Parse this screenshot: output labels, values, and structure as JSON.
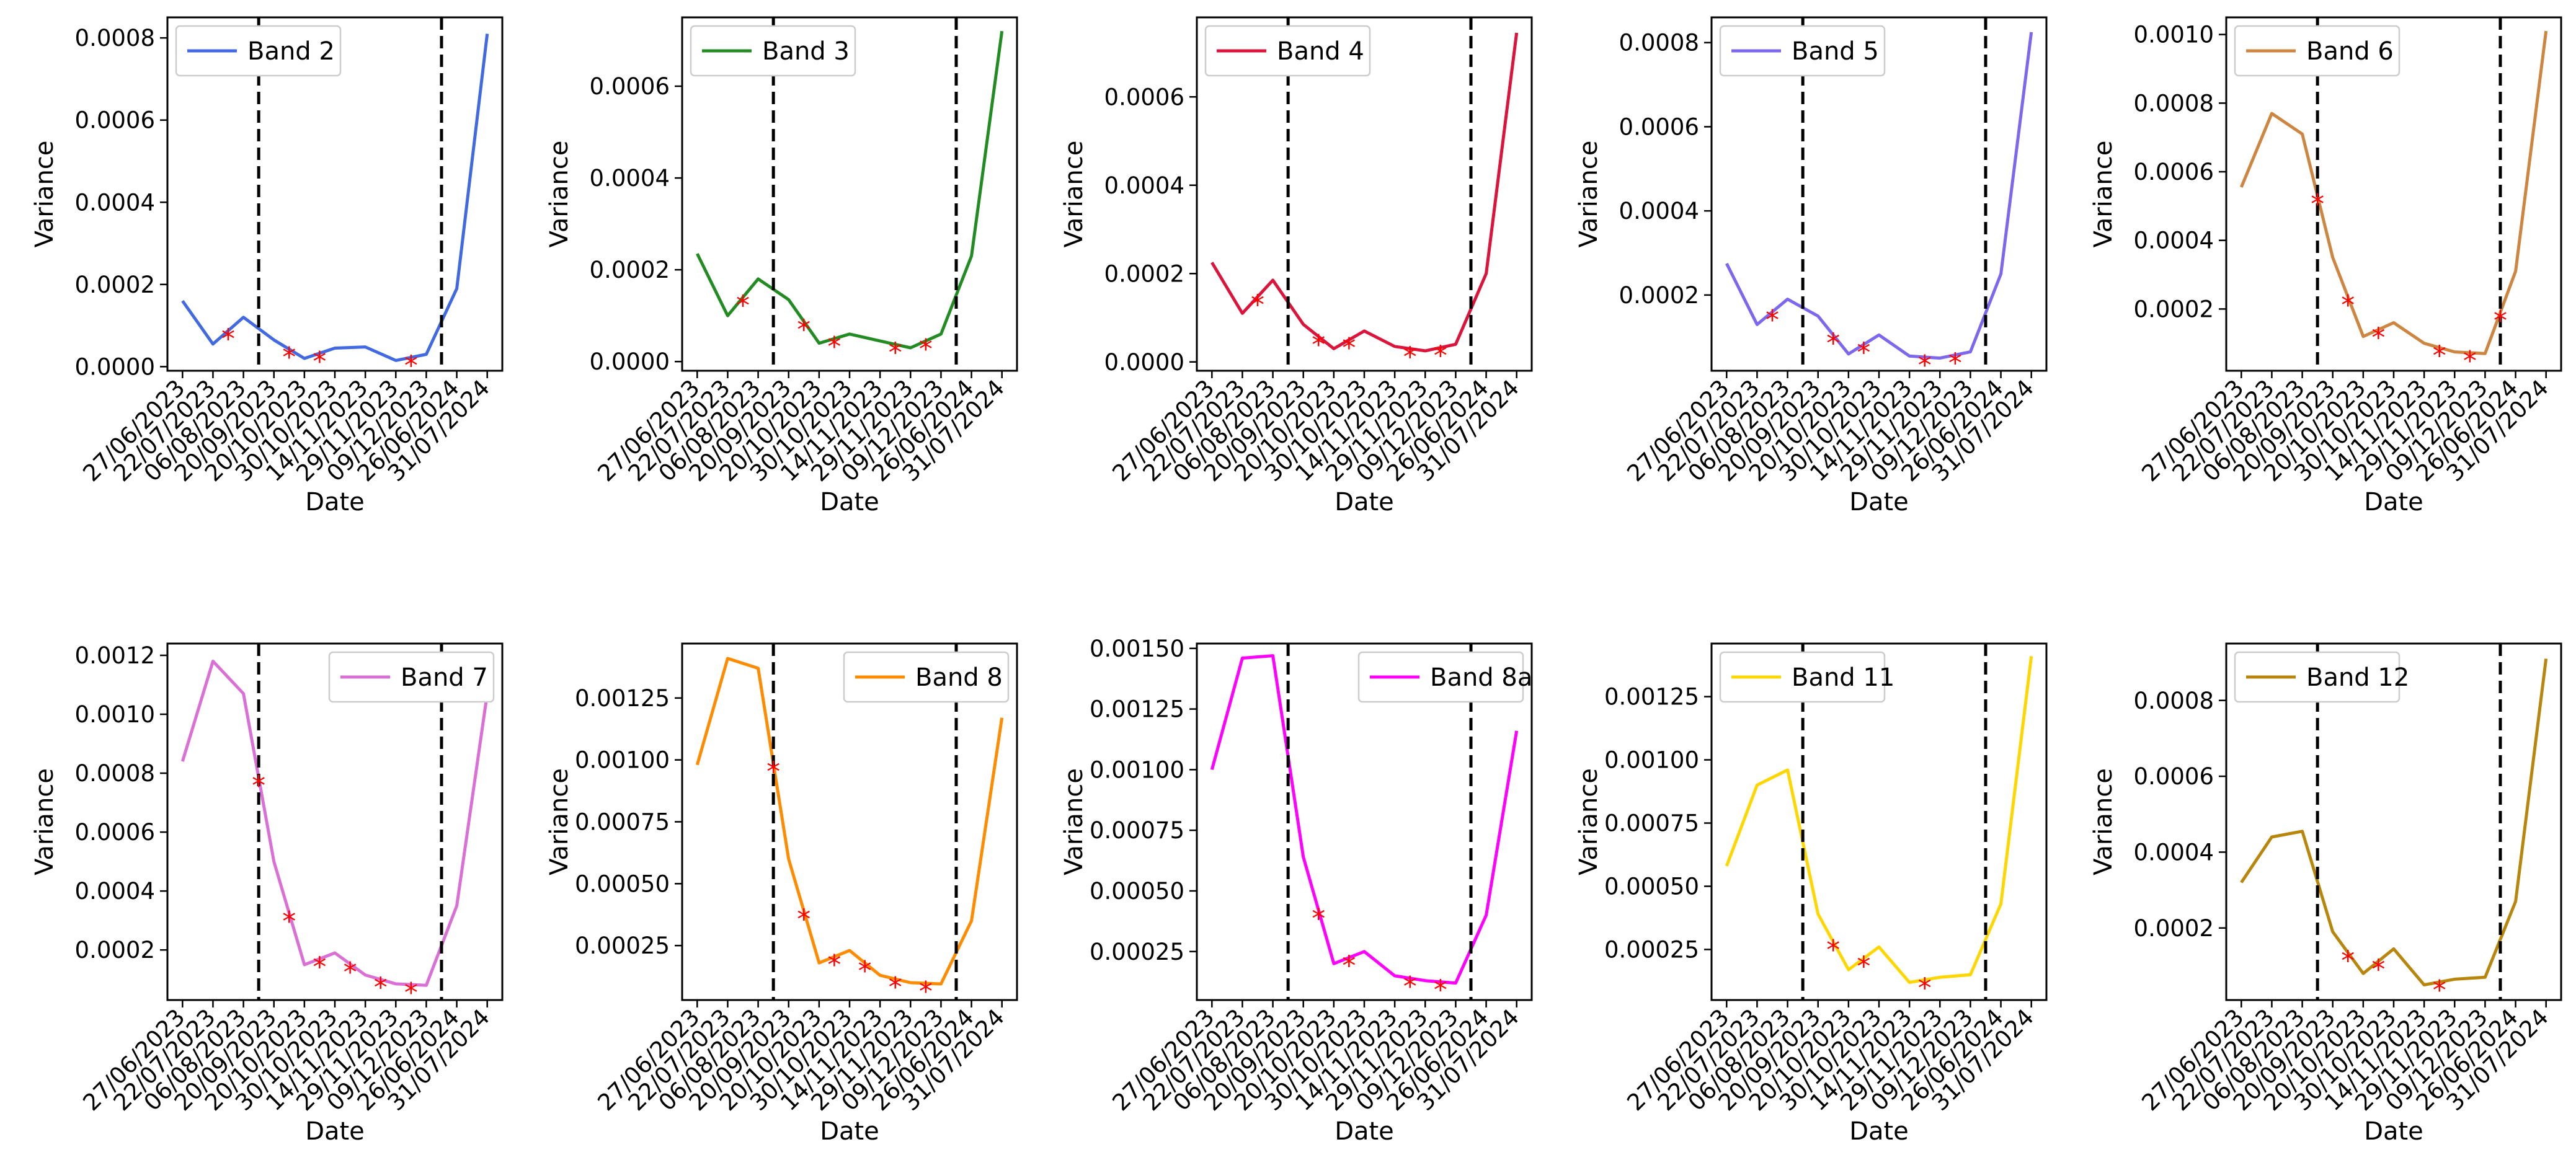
{
  "chart_data": [
    {
      "type": "line",
      "title": "",
      "legend": "Band 2",
      "legend_loc": "upper-left",
      "color": "#4169e1",
      "xlabel": "Date",
      "ylabel": "Variance",
      "categories": [
        "27/06/2023",
        "22/07/2023",
        "06/08/2023",
        "20/09/2023",
        "20/10/2023",
        "30/10/2023",
        "14/11/2023",
        "29/11/2023",
        "09/12/2023",
        "26/06/2024",
        "31/07/2024"
      ],
      "values": [
        0.00016,
        5.5e-05,
        0.00012,
        6.5e-05,
        2e-05,
        4.5e-05,
        4.8e-05,
        1.5e-05,
        3e-05,
        0.00019,
        0.00081
      ],
      "markers": [
        1,
        3,
        4,
        7
      ],
      "dashed_at": [
        2.5,
        8.5
      ],
      "ylim": [
        -1e-05,
        0.00085
      ],
      "yticks": [
        0,
        0.0002,
        0.0004,
        0.0006,
        0.0008
      ],
      "ytick_labels": [
        "0.0000",
        "0.0002",
        "0.0004",
        "0.0006",
        "0.0008"
      ]
    },
    {
      "type": "line",
      "title": "",
      "legend": "Band 3",
      "legend_loc": "upper-left",
      "color": "#228b22",
      "xlabel": "Date",
      "ylabel": "Variance",
      "categories": [
        "27/06/2023",
        "22/07/2023",
        "06/08/2023",
        "20/09/2023",
        "20/10/2023",
        "30/10/2023",
        "14/11/2023",
        "29/11/2023",
        "09/12/2023",
        "26/06/2024",
        "31/07/2024"
      ],
      "values": [
        0.000235,
        0.0001,
        0.00018,
        0.000135,
        4e-05,
        6e-05,
        4.5e-05,
        3e-05,
        6e-05,
        0.00023,
        0.00072
      ],
      "markers": [
        1,
        3,
        4,
        6,
        7
      ],
      "dashed_at": [
        2.5,
        8.5
      ],
      "ylim": [
        -2e-05,
        0.00075
      ],
      "yticks": [
        0,
        0.0002,
        0.0004,
        0.0006
      ],
      "ytick_labels": [
        "0.0000",
        "0.0002",
        "0.0004",
        "0.0006"
      ]
    },
    {
      "type": "line",
      "title": "",
      "legend": "Band 4",
      "legend_loc": "upper-left",
      "color": "#dc143c",
      "xlabel": "Date",
      "ylabel": "Variance",
      "categories": [
        "27/06/2023",
        "22/07/2023",
        "06/08/2023",
        "20/09/2023",
        "20/10/2023",
        "30/10/2023",
        "14/11/2023",
        "29/11/2023",
        "09/12/2023",
        "26/06/2024",
        "31/07/2024"
      ],
      "values": [
        0.000225,
        0.00011,
        0.000185,
        8.5e-05,
        3e-05,
        7e-05,
        3.5e-05,
        2.5e-05,
        4e-05,
        0.0002,
        0.000745
      ],
      "markers": [
        1,
        3,
        4,
        6,
        7
      ],
      "dashed_at": [
        2.5,
        8.5
      ],
      "ylim": [
        -2e-05,
        0.00078
      ],
      "yticks": [
        0,
        0.0002,
        0.0004,
        0.0006
      ],
      "ytick_labels": [
        "0.0000",
        "0.0002",
        "0.0004",
        "0.0006"
      ]
    },
    {
      "type": "line",
      "title": "",
      "legend": "Band 5",
      "legend_loc": "upper-left",
      "color": "#7b68ee",
      "xlabel": "Date",
      "ylabel": "Variance",
      "categories": [
        "27/06/2023",
        "22/07/2023",
        "06/08/2023",
        "20/09/2023",
        "20/10/2023",
        "30/10/2023",
        "14/11/2023",
        "29/11/2023",
        "09/12/2023",
        "26/06/2024",
        "31/07/2024"
      ],
      "values": [
        0.000275,
        0.00013,
        0.00019,
        0.00015,
        6e-05,
        0.000105,
        5.5e-05,
        5e-05,
        6.5e-05,
        0.00025,
        0.000825
      ],
      "markers": [
        1,
        3,
        4,
        6,
        7
      ],
      "dashed_at": [
        2.5,
        8.5
      ],
      "ylim": [
        2e-05,
        0.00086
      ],
      "yticks": [
        0.0002,
        0.0004,
        0.0006,
        0.0008
      ],
      "ytick_labels": [
        "0.0002",
        "0.0004",
        "0.0006",
        "0.0008"
      ]
    },
    {
      "type": "line",
      "title": "",
      "legend": "Band 6",
      "legend_loc": "upper-left",
      "color": "#cd853f",
      "xlabel": "Date",
      "ylabel": "Variance",
      "categories": [
        "27/06/2023",
        "22/07/2023",
        "06/08/2023",
        "20/09/2023",
        "20/10/2023",
        "30/10/2023",
        "14/11/2023",
        "29/11/2023",
        "09/12/2023",
        "26/06/2024",
        "31/07/2024"
      ],
      "values": [
        0.000555,
        0.00077,
        0.00071,
        0.00035,
        0.00012,
        0.00016,
        0.0001,
        7.5e-05,
        7e-05,
        0.00031,
        0.00101
      ],
      "markers": [
        2,
        3,
        4,
        6,
        7,
        8
      ],
      "dashed_at": [
        2.5,
        8.5
      ],
      "ylim": [
        2e-05,
        0.00105
      ],
      "yticks": [
        0.0002,
        0.0004,
        0.0006,
        0.0008,
        0.001
      ],
      "ytick_labels": [
        "0.0002",
        "0.0004",
        "0.0006",
        "0.0008",
        "0.0010"
      ]
    },
    {
      "type": "line",
      "title": "",
      "legend": "Band 7",
      "legend_loc": "upper-right",
      "color": "#da70d6",
      "xlabel": "Date",
      "ylabel": "Variance",
      "categories": [
        "27/06/2023",
        "22/07/2023",
        "06/08/2023",
        "20/09/2023",
        "20/10/2023",
        "30/10/2023",
        "14/11/2023",
        "29/11/2023",
        "09/12/2023",
        "26/06/2024",
        "31/07/2024"
      ],
      "values": [
        0.00084,
        0.00118,
        0.00107,
        0.0005,
        0.00015,
        0.00019,
        0.000115,
        8.5e-05,
        8e-05,
        0.00035,
        0.00107
      ],
      "markers": [
        2,
        3,
        4,
        5,
        6,
        7
      ],
      "dashed_at": [
        2.5,
        8.5
      ],
      "ylim": [
        3e-05,
        0.00124
      ],
      "yticks": [
        0.0002,
        0.0004,
        0.0006,
        0.0008,
        0.001,
        0.0012
      ],
      "ytick_labels": [
        "0.0002",
        "0.0004",
        "0.0006",
        "0.0008",
        "0.0010",
        "0.0012"
      ]
    },
    {
      "type": "line",
      "title": "",
      "legend": "Band 8",
      "legend_loc": "upper-right",
      "color": "#ff8c00",
      "xlabel": "Date",
      "ylabel": "Variance",
      "categories": [
        "27/06/2023",
        "22/07/2023",
        "06/08/2023",
        "20/09/2023",
        "20/10/2023",
        "30/10/2023",
        "14/11/2023",
        "29/11/2023",
        "09/12/2023",
        "26/06/2024",
        "31/07/2024"
      ],
      "values": [
        0.00098,
        0.00141,
        0.00137,
        0.0006,
        0.00018,
        0.00023,
        0.00013,
        0.0001,
        9.5e-05,
        0.00035,
        0.00117
      ],
      "markers": [
        2,
        3,
        4,
        5,
        6,
        7
      ],
      "dashed_at": [
        2.5,
        8.5
      ],
      "ylim": [
        3e-05,
        0.00147
      ],
      "yticks": [
        0.00025,
        0.0005,
        0.00075,
        0.001,
        0.00125
      ],
      "ytick_labels": [
        "0.00025",
        "0.00050",
        "0.00075",
        "0.00100",
        "0.00125"
      ]
    },
    {
      "type": "line",
      "title": "",
      "legend": "Band 8a",
      "legend_loc": "upper-right",
      "color": "#ff00ff",
      "xlabel": "Date",
      "ylabel": "Variance",
      "categories": [
        "27/06/2023",
        "22/07/2023",
        "06/08/2023",
        "20/09/2023",
        "20/10/2023",
        "30/10/2023",
        "14/11/2023",
        "29/11/2023",
        "09/12/2023",
        "26/06/2024",
        "31/07/2024"
      ],
      "values": [
        0.001,
        0.00146,
        0.00147,
        0.00064,
        0.0002,
        0.00025,
        0.00015,
        0.00013,
        0.00012,
        0.0004,
        0.00116
      ],
      "markers": [
        3,
        4,
        6,
        7
      ],
      "dashed_at": [
        2.5,
        8.5
      ],
      "ylim": [
        5e-05,
        0.00152
      ],
      "yticks": [
        0.00025,
        0.0005,
        0.00075,
        0.001,
        0.00125,
        0.0015
      ],
      "ytick_labels": [
        "0.00025",
        "0.00050",
        "0.00075",
        "0.00100",
        "0.00125",
        "0.00150"
      ]
    },
    {
      "type": "line",
      "title": "",
      "legend": "Band 11",
      "legend_loc": "upper-left",
      "color": "#ffd700",
      "xlabel": "Date",
      "ylabel": "Variance",
      "categories": [
        "27/06/2023",
        "22/07/2023",
        "06/08/2023",
        "20/09/2023",
        "20/10/2023",
        "30/10/2023",
        "14/11/2023",
        "29/11/2023",
        "09/12/2023",
        "26/06/2024",
        "31/07/2024"
      ],
      "values": [
        0.00058,
        0.0009,
        0.00096,
        0.00039,
        0.00017,
        0.00026,
        0.00012,
        0.00014,
        0.00015,
        0.00043,
        0.00141
      ],
      "markers": [
        3,
        4,
        6
      ],
      "dashed_at": [
        2.5,
        8.5
      ],
      "ylim": [
        5e-05,
        0.00146
      ],
      "yticks": [
        0.00025,
        0.0005,
        0.00075,
        0.001,
        0.00125
      ],
      "ytick_labels": [
        "0.00025",
        "0.00050",
        "0.00075",
        "0.00100",
        "0.00125"
      ]
    },
    {
      "type": "line",
      "title": "",
      "legend": "Band 12",
      "legend_loc": "upper-left",
      "color": "#b8860b",
      "xlabel": "Date",
      "ylabel": "Variance",
      "categories": [
        "27/06/2023",
        "22/07/2023",
        "06/08/2023",
        "20/09/2023",
        "20/10/2023",
        "30/10/2023",
        "14/11/2023",
        "29/11/2023",
        "09/12/2023",
        "26/06/2024",
        "31/07/2024"
      ],
      "values": [
        0.00032,
        0.00044,
        0.000455,
        0.00019,
        8e-05,
        0.000145,
        5e-05,
        6.5e-05,
        7e-05,
        0.00027,
        0.00091
      ],
      "markers": [
        3,
        4,
        6
      ],
      "dashed_at": [
        2.5,
        8.5
      ],
      "ylim": [
        1e-05,
        0.00095
      ],
      "yticks": [
        0.0002,
        0.0004,
        0.0006,
        0.0008
      ],
      "ytick_labels": [
        "0.0002",
        "0.0004",
        "0.0006",
        "0.0008"
      ]
    }
  ]
}
